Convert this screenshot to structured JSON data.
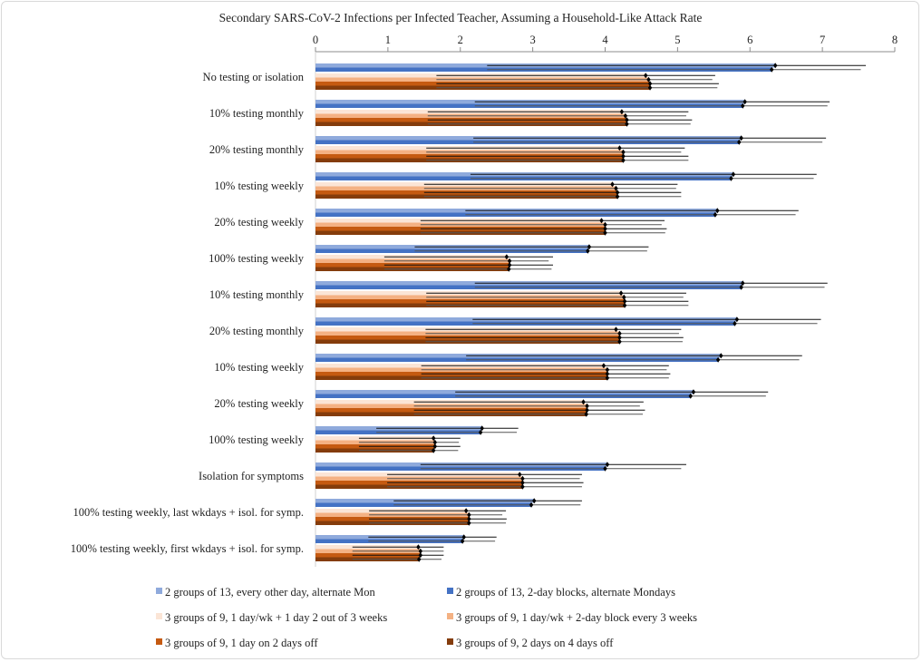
{
  "chart_data": {
    "type": "bar",
    "orientation": "horizontal",
    "title": "Secondary SARS-CoV-2 Infections per Infected Teacher, Assuming a Household-Like Attack Rate",
    "xlim": [
      0,
      8
    ],
    "xticks": [
      "0",
      "1",
      "2",
      "3",
      "4",
      "5",
      "6",
      "7",
      "8"
    ],
    "xaxis_position": "top",
    "grid": false,
    "legend_position": "bottom",
    "error_bars": true,
    "categories": [
      "No testing or isolation",
      "10% testing monthly",
      "20% testing monthly",
      "10% testing weekly",
      "20% testing weekly",
      "100% testing weekly",
      "10% testing monthly",
      "20% testing monthly",
      "10% testing weekly",
      "20% testing weekly",
      "100% testing weekly",
      "Isolation for symptoms",
      "100% testing weekly, last wkdays + isol. for symp.",
      "100% testing weekly, first wkdays + isol. for symp."
    ],
    "series": [
      {
        "name": "2 groups of 13, every other day, alternate Mon",
        "color": "#8faadc",
        "values": [
          6.35,
          5.93,
          5.88,
          5.77,
          5.55,
          3.78,
          5.9,
          5.82,
          5.6,
          5.22,
          2.3,
          4.03,
          3.02,
          2.05
        ],
        "lower": [
          2.37,
          2.2,
          2.18,
          2.14,
          2.07,
          1.37,
          2.2,
          2.17,
          2.08,
          1.93,
          0.84,
          1.45,
          1.08,
          0.73
        ],
        "upper": [
          7.6,
          7.1,
          7.05,
          6.92,
          6.67,
          4.6,
          7.07,
          6.98,
          6.72,
          6.25,
          2.8,
          5.12,
          3.68,
          2.5
        ]
      },
      {
        "name": "2 groups of 13, 2-day blocks, alternate Mondays",
        "color": "#4472c4",
        "values": [
          6.3,
          5.9,
          5.85,
          5.74,
          5.52,
          3.76,
          5.88,
          5.79,
          5.56,
          5.18,
          2.28,
          4.0,
          2.98,
          2.03
        ],
        "lower": [
          2.37,
          2.2,
          2.18,
          2.14,
          2.07,
          1.37,
          2.2,
          2.17,
          2.08,
          1.93,
          0.84,
          1.45,
          1.08,
          0.73
        ],
        "upper": [
          7.53,
          7.07,
          7.0,
          6.88,
          6.63,
          4.58,
          7.03,
          6.93,
          6.68,
          6.22,
          2.78,
          5.05,
          3.66,
          2.48
        ]
      },
      {
        "name": "3 groups of 9,  1 day/wk + 1 day 2 out of 3 weeks",
        "color": "#fbe5d6",
        "values": [
          4.56,
          4.23,
          4.2,
          4.1,
          3.95,
          2.64,
          4.22,
          4.15,
          3.98,
          3.7,
          1.63,
          2.82,
          2.08,
          1.42
        ],
        "lower": [
          1.67,
          1.55,
          1.53,
          1.5,
          1.45,
          0.95,
          1.53,
          1.52,
          1.46,
          1.36,
          0.6,
          0.99,
          0.74,
          0.51
        ],
        "upper": [
          5.52,
          5.15,
          5.1,
          5.0,
          4.82,
          3.28,
          5.12,
          5.05,
          4.88,
          4.53,
          2.0,
          3.68,
          2.63,
          1.77
        ]
      },
      {
        "name": "3 groups of 9,  1 day/wk + 2-day block every 3 weeks",
        "color": "#f4b183",
        "values": [
          4.6,
          4.28,
          4.25,
          4.15,
          4.0,
          2.68,
          4.26,
          4.2,
          4.03,
          3.75,
          1.65,
          2.86,
          2.12,
          1.45
        ],
        "lower": [
          1.67,
          1.55,
          1.53,
          1.5,
          1.45,
          0.95,
          1.53,
          1.52,
          1.46,
          1.36,
          0.6,
          0.99,
          0.74,
          0.51
        ],
        "upper": [
          5.48,
          5.12,
          5.05,
          4.98,
          4.78,
          3.22,
          5.08,
          5.02,
          4.85,
          4.48,
          1.98,
          3.65,
          2.58,
          1.77
        ]
      },
      {
        "name": "3 groups of 9, 1 day on 2 days off",
        "color": "#c55a11",
        "values": [
          4.62,
          4.3,
          4.25,
          4.17,
          4.0,
          2.68,
          4.27,
          4.2,
          4.03,
          3.75,
          1.65,
          2.86,
          2.12,
          1.45
        ],
        "lower": [
          1.67,
          1.55,
          1.53,
          1.5,
          1.45,
          0.95,
          1.53,
          1.52,
          1.46,
          1.36,
          0.6,
          0.99,
          0.74,
          0.51
        ],
        "upper": [
          5.57,
          5.2,
          5.15,
          5.05,
          4.85,
          3.28,
          5.15,
          5.08,
          4.9,
          4.55,
          2.0,
          3.7,
          2.64,
          1.77
        ]
      },
      {
        "name": "3 groups of 9, 2 days on 4 days off",
        "color": "#843c0c",
        "values": [
          4.62,
          4.3,
          4.25,
          4.17,
          4.0,
          2.67,
          4.27,
          4.2,
          4.03,
          3.74,
          1.63,
          2.86,
          2.12,
          1.43
        ],
        "lower": [
          1.67,
          1.55,
          1.53,
          1.5,
          1.45,
          0.95,
          1.53,
          1.52,
          1.46,
          1.36,
          0.6,
          0.99,
          0.74,
          0.51
        ],
        "upper": [
          5.55,
          5.18,
          5.15,
          5.05,
          4.83,
          3.26,
          5.15,
          5.07,
          4.88,
          4.52,
          1.97,
          3.68,
          2.63,
          1.74
        ]
      }
    ]
  }
}
